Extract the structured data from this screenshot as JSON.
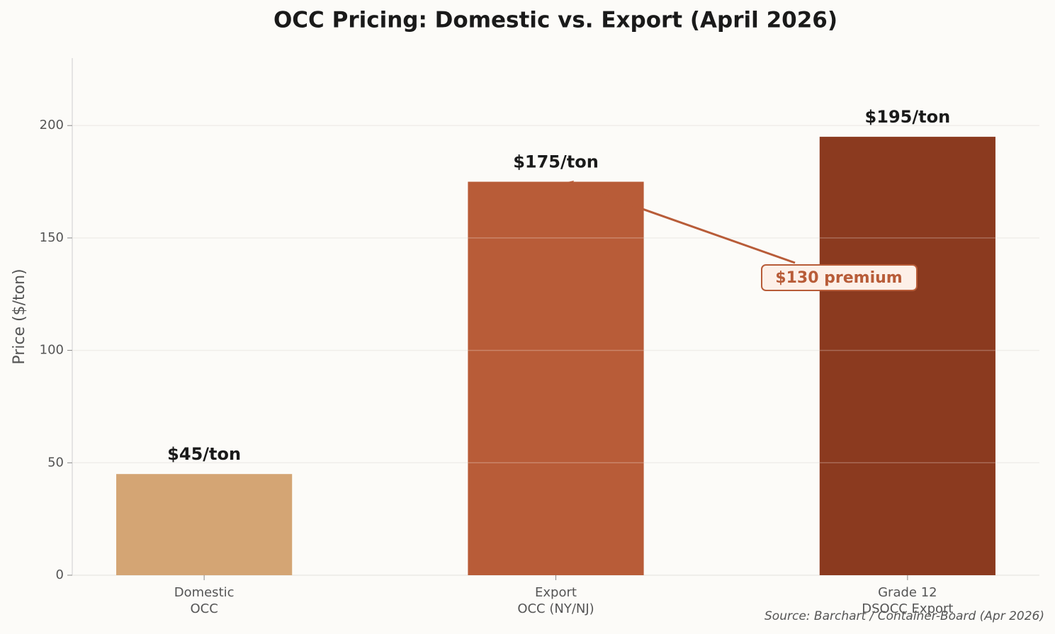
{
  "chart_data": {
    "type": "bar",
    "title": "OCC Pricing: Domestic vs. Export (April 2026)",
    "y_label": "Price ($/ton)",
    "categories": [
      "Domestic\nOCC",
      "Export\nOCC (NY/NJ)",
      "Grade 12\nDSOCC Export"
    ],
    "values": [
      45,
      175,
      195
    ],
    "value_labels": [
      "$45/ton",
      "$175/ton",
      "$195/ton"
    ],
    "colors": [
      "#d4a574",
      "#b85c38",
      "#8b3a1f"
    ],
    "ylim": [
      0,
      230
    ],
    "yticks": [
      0,
      50,
      100,
      150,
      200
    ],
    "grid": true,
    "annotation": "$130 premium",
    "source": "Source: Barchart / Container-Board (Apr 2026)"
  }
}
